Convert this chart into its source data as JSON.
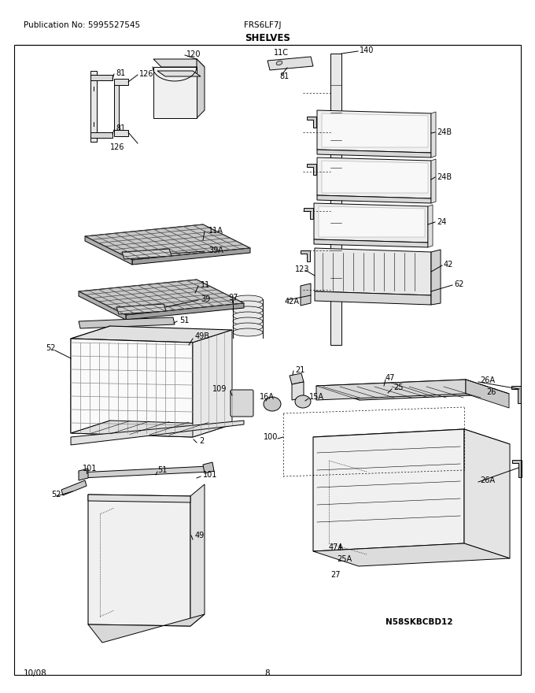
{
  "title": "SHELVES",
  "pub_no": "Publication No: 5995527545",
  "model": "FRS6LF7J",
  "date": "10/08",
  "page": "8",
  "diagram_id": "N58SKBCBD12",
  "bg_color": "#ffffff"
}
